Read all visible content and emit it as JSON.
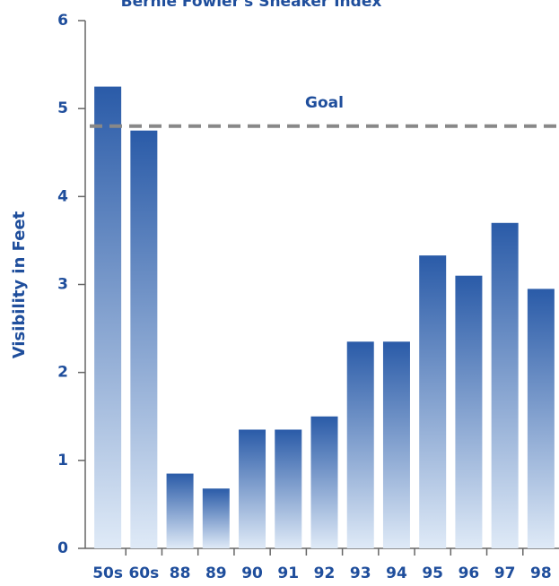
{
  "chart_data": {
    "type": "bar",
    "title": "Bernie Fowler's Sneaker Index",
    "y_label": "Visibility in Feet",
    "categories": [
      "50s",
      "60s",
      "88",
      "89",
      "90",
      "91",
      "92",
      "93",
      "94",
      "95",
      "96",
      "97",
      "98"
    ],
    "values": [
      5.25,
      4.75,
      0.85,
      0.68,
      1.35,
      1.35,
      1.5,
      2.35,
      2.35,
      3.33,
      3.1,
      3.7,
      2.95
    ],
    "color": "#2a5ba8",
    "goal": {
      "label": "Goal",
      "value": 4.8
    },
    "ylim": [
      0,
      6
    ],
    "yticks": [
      0,
      1,
      2,
      3,
      4,
      5,
      6
    ]
  }
}
